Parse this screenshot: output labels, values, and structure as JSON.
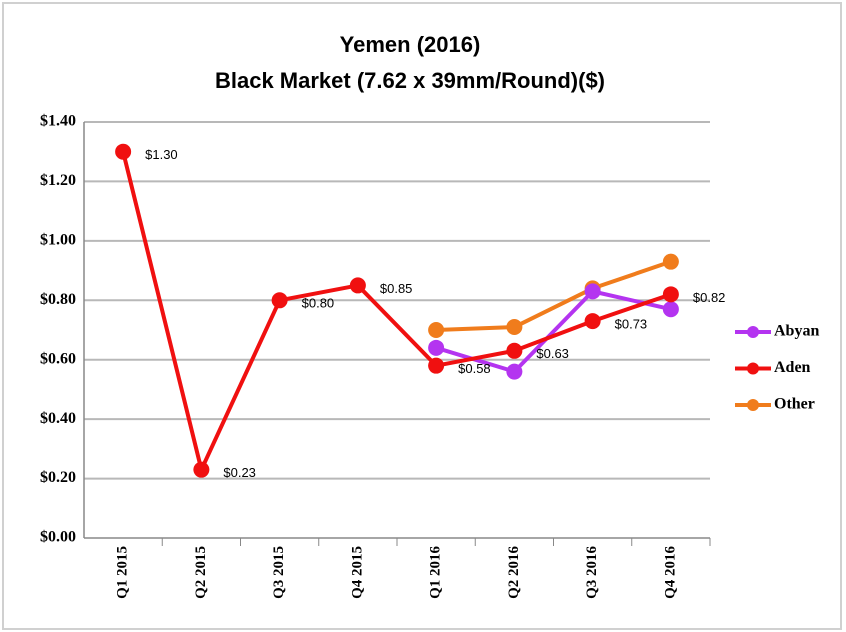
{
  "chart_data": {
    "type": "line",
    "title": "Yemen (2016)",
    "subtitle": "Black Market (7.62 x 39mm/Round)($)",
    "categories": [
      "Q1 2015",
      "Q2 2015",
      "Q3 2015",
      "Q4 2015",
      "Q1 2016",
      "Q2 2016",
      "Q3 2016",
      "Q4 2016"
    ],
    "series": [
      {
        "name": "Abyan",
        "color": "#b434f0",
        "values": [
          null,
          null,
          null,
          null,
          0.64,
          0.56,
          0.83,
          0.77
        ]
      },
      {
        "name": "Aden",
        "color": "#f01010",
        "values": [
          1.3,
          0.23,
          0.8,
          0.85,
          0.58,
          0.63,
          0.73,
          0.82
        ],
        "value_labels": [
          "$1.30",
          "$0.23",
          "$0.80",
          "$0.85",
          "$0.58",
          "$0.63",
          "$0.73",
          "$0.82"
        ]
      },
      {
        "name": "Other",
        "color": "#f07c1c",
        "values": [
          null,
          null,
          null,
          null,
          0.7,
          0.71,
          0.84,
          0.93
        ]
      }
    ],
    "ylim": [
      0,
      1.4
    ],
    "yticks": [
      {
        "value": 0,
        "label": "$0.00"
      },
      {
        "value": 0.2,
        "label": "$0.20"
      },
      {
        "value": 0.4,
        "label": "$0.40"
      },
      {
        "value": 0.6,
        "label": "$0.60"
      },
      {
        "value": 0.8,
        "label": "$0.80"
      },
      {
        "value": 1.0,
        "label": "$1.00"
      },
      {
        "value": 1.2,
        "label": "$1.20"
      },
      {
        "value": 1.4,
        "label": "$1.40"
      }
    ],
    "grid": true,
    "legend": "right"
  }
}
